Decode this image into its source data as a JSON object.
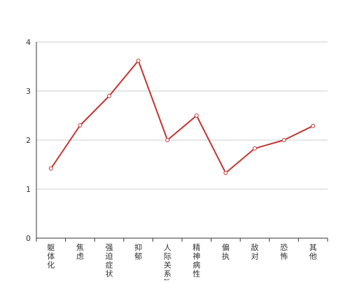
{
  "chart_data": {
    "type": "line",
    "title": "",
    "xlabel": "",
    "ylabel": "",
    "categories": [
      "躯体化",
      "焦虑",
      "强迫症状",
      "抑郁",
      "人际关系敏感",
      "精神病性",
      "偏执",
      "敌对",
      "恐怖",
      "其他"
    ],
    "series": [
      {
        "values": [
          1.42,
          2.3,
          2.9,
          3.62,
          2.0,
          2.5,
          1.33,
          1.83,
          2.0,
          2.29
        ]
      }
    ],
    "ylim": [
      0,
      4
    ],
    "yticks": [
      "0",
      "1",
      "2",
      "3",
      "4"
    ],
    "grid": true,
    "legend": "none",
    "colors": {
      "line": "#c23531",
      "grid": "#cccccc",
      "axis": "#333333",
      "text": "#333333"
    }
  }
}
